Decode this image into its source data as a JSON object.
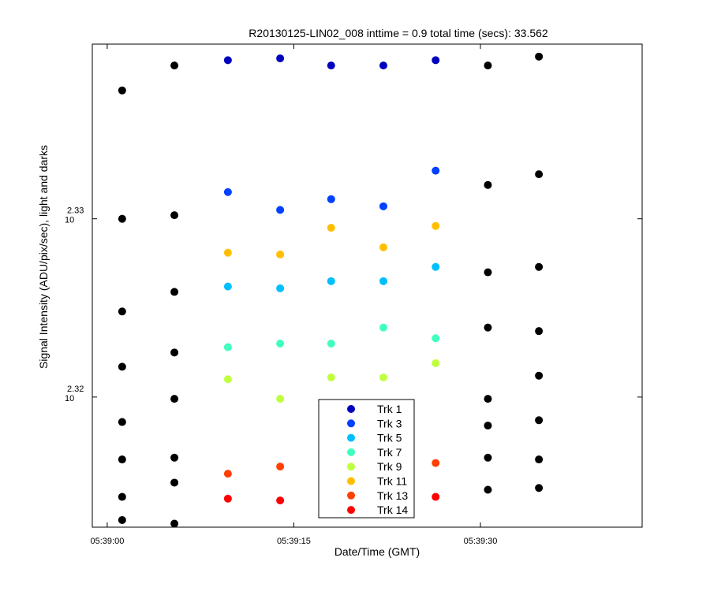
{
  "chart_data": {
    "type": "scatter",
    "title": "R20130125-LIN02_008 inttime = 0.9 total time (secs): 33.562",
    "xlabel": "Date/Time (GMT)",
    "ylabel": "Signal Intensity (ADU/pix/sec), light and darks",
    "x_scale": "time",
    "y_scale": "log10",
    "x_range": [
      "05:38:58.8",
      "05:39:43.0"
    ],
    "y_range_log10": [
      2.3127,
      2.3398
    ],
    "grid": false,
    "legend_placement": "bottom-center",
    "x_ticks": [
      "05:39:00",
      "05:39:15",
      "05:39:30"
    ],
    "y_ticks": [
      {
        "base": "10",
        "exponent": "2.32",
        "log10": 2.32
      },
      {
        "base": "10",
        "exponent": "2.33",
        "log10": 2.33
      }
    ],
    "legend": [
      "Trk 1",
      "Trk 3",
      "Trk 5",
      "Trk 7",
      "Trk 9",
      "Trk 11",
      "Trk 13",
      "Trk 14"
    ],
    "series": [
      {
        "name": "Trk 1",
        "color": "#0000bf",
        "points": [
          {
            "x": "05:39:09.7",
            "log10y": 2.3389
          },
          {
            "x": "05:39:13.9",
            "log10y": 2.339
          },
          {
            "x": "05:39:18.0",
            "log10y": 2.3386
          },
          {
            "x": "05:39:22.2",
            "log10y": 2.3386
          },
          {
            "x": "05:39:26.4",
            "log10y": 2.3389
          }
        ]
      },
      {
        "name": "Trk 3",
        "color": "#0040ff",
        "points": [
          {
            "x": "05:39:09.7",
            "log10y": 2.3315
          },
          {
            "x": "05:39:13.9",
            "log10y": 2.3305
          },
          {
            "x": "05:39:18.0",
            "log10y": 2.3311
          },
          {
            "x": "05:39:22.2",
            "log10y": 2.3307
          },
          {
            "x": "05:39:26.4",
            "log10y": 2.3327
          }
        ]
      },
      {
        "name": "Trk 5",
        "color": "#00bfff",
        "points": [
          {
            "x": "05:39:09.7",
            "log10y": 2.3262
          },
          {
            "x": "05:39:13.9",
            "log10y": 2.3261
          },
          {
            "x": "05:39:18.0",
            "log10y": 2.3265
          },
          {
            "x": "05:39:22.2",
            "log10y": 2.3265
          },
          {
            "x": "05:39:26.4",
            "log10y": 2.3273
          }
        ]
      },
      {
        "name": "Trk 7",
        "color": "#40ffbf",
        "points": [
          {
            "x": "05:39:09.7",
            "log10y": 2.3228
          },
          {
            "x": "05:39:13.9",
            "log10y": 2.323
          },
          {
            "x": "05:39:18.0",
            "log10y": 2.323
          },
          {
            "x": "05:39:22.2",
            "log10y": 2.3239
          },
          {
            "x": "05:39:26.4",
            "log10y": 2.3233
          }
        ]
      },
      {
        "name": "Trk 9",
        "color": "#bfff40",
        "points": [
          {
            "x": "05:39:09.7",
            "log10y": 2.321
          },
          {
            "x": "05:39:13.9",
            "log10y": 2.3199
          },
          {
            "x": "05:39:18.0",
            "log10y": 2.3211
          },
          {
            "x": "05:39:22.2",
            "log10y": 2.3211
          },
          {
            "x": "05:39:26.4",
            "log10y": 2.3219
          }
        ]
      },
      {
        "name": "Trk 11",
        "color": "#ffbf00",
        "points": [
          {
            "x": "05:39:09.7",
            "log10y": 2.3281
          },
          {
            "x": "05:39:13.9",
            "log10y": 2.328
          },
          {
            "x": "05:39:18.0",
            "log10y": 2.3295
          },
          {
            "x": "05:39:22.2",
            "log10y": 2.3284
          },
          {
            "x": "05:39:26.4",
            "log10y": 2.3296
          }
        ]
      },
      {
        "name": "Trk 13",
        "color": "#ff4000",
        "points": [
          {
            "x": "05:39:09.7",
            "log10y": 2.3157
          },
          {
            "x": "05:39:13.9",
            "log10y": 2.3161
          },
          {
            "x": "05:39:26.4",
            "log10y": 2.3163
          }
        ]
      },
      {
        "name": "Trk 14",
        "color": "#ff0000",
        "points": [
          {
            "x": "05:39:09.7",
            "log10y": 2.3143
          },
          {
            "x": "05:39:13.9",
            "log10y": 2.3142
          },
          {
            "x": "05:39:26.4",
            "log10y": 2.3144
          }
        ]
      },
      {
        "color": "#000000",
        "points": [
          {
            "x": "05:39:01.2",
            "log10y": 2.3372
          },
          {
            "x": "05:39:01.2",
            "log10y": 2.33
          },
          {
            "x": "05:39:01.2",
            "log10y": 2.3248
          },
          {
            "x": "05:39:01.2",
            "log10y": 2.3217
          },
          {
            "x": "05:39:01.2",
            "log10y": 2.3186
          },
          {
            "x": "05:39:01.2",
            "log10y": 2.3165
          },
          {
            "x": "05:39:01.2",
            "log10y": 2.3144
          },
          {
            "x": "05:39:01.2",
            "log10y": 2.3131
          },
          {
            "x": "05:39:05.4",
            "log10y": 2.3386
          },
          {
            "x": "05:39:05.4",
            "log10y": 2.3302
          },
          {
            "x": "05:39:05.4",
            "log10y": 2.3259
          },
          {
            "x": "05:39:05.4",
            "log10y": 2.3225
          },
          {
            "x": "05:39:05.4",
            "log10y": 2.3199
          },
          {
            "x": "05:39:05.4",
            "log10y": 2.3166
          },
          {
            "x": "05:39:05.4",
            "log10y": 2.3152
          },
          {
            "x": "05:39:05.4",
            "log10y": 2.3129
          },
          {
            "x": "05:39:30.6",
            "log10y": 2.3386
          },
          {
            "x": "05:39:30.6",
            "log10y": 2.3319
          },
          {
            "x": "05:39:30.6",
            "log10y": 2.327
          },
          {
            "x": "05:39:30.6",
            "log10y": 2.3239
          },
          {
            "x": "05:39:30.6",
            "log10y": 2.3199
          },
          {
            "x": "05:39:30.6",
            "log10y": 2.3184
          },
          {
            "x": "05:39:30.6",
            "log10y": 2.3166
          },
          {
            "x": "05:39:30.6",
            "log10y": 2.3148
          },
          {
            "x": "05:39:34.7",
            "log10y": 2.3391
          },
          {
            "x": "05:39:34.7",
            "log10y": 2.3325
          },
          {
            "x": "05:39:34.7",
            "log10y": 2.3273
          },
          {
            "x": "05:39:34.7",
            "log10y": 2.3237
          },
          {
            "x": "05:39:34.7",
            "log10y": 2.3212
          },
          {
            "x": "05:39:34.7",
            "log10y": 2.3187
          },
          {
            "x": "05:39:34.7",
            "log10y": 2.3165
          },
          {
            "x": "05:39:34.7",
            "log10y": 2.3149
          }
        ]
      }
    ]
  }
}
